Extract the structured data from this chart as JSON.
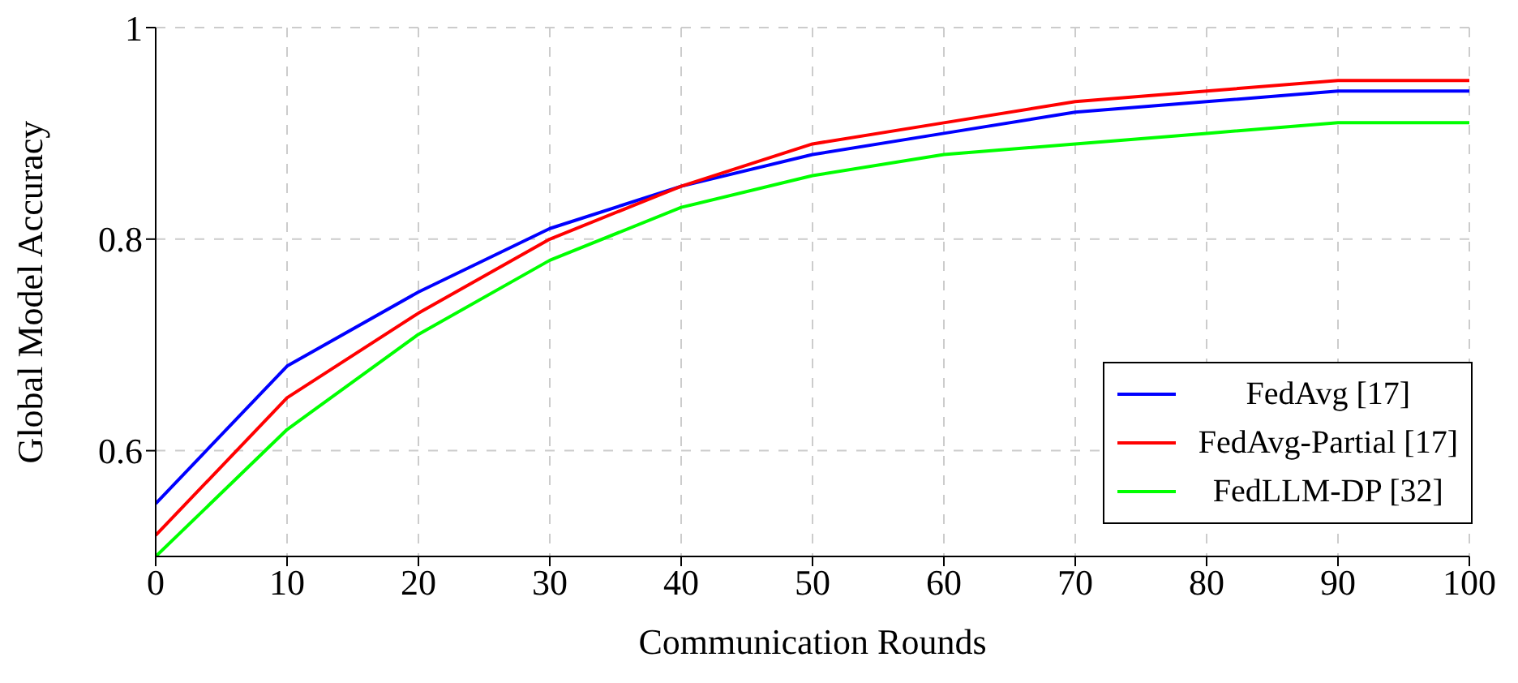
{
  "chart_data": {
    "type": "line",
    "xlabel": "Communication Rounds",
    "ylabel": "Global Model Accuracy",
    "x": [
      0,
      10,
      20,
      30,
      40,
      50,
      60,
      70,
      80,
      90,
      100
    ],
    "series": [
      {
        "name": "FedAvg [17]",
        "color": "#0000ff",
        "values": [
          0.55,
          0.68,
          0.75,
          0.81,
          0.85,
          0.88,
          0.9,
          0.92,
          0.93,
          0.94,
          0.94
        ]
      },
      {
        "name": "FedAvg-Partial [17]",
        "color": "#ff0000",
        "values": [
          0.52,
          0.65,
          0.73,
          0.8,
          0.85,
          0.89,
          0.91,
          0.93,
          0.94,
          0.95,
          0.95
        ]
      },
      {
        "name": "FedLLM-DP [32]",
        "color": "#00ff00",
        "values": [
          0.5,
          0.62,
          0.71,
          0.78,
          0.83,
          0.86,
          0.88,
          0.89,
          0.9,
          0.91,
          0.91
        ]
      }
    ],
    "xlim": [
      0,
      100
    ],
    "xticks": [
      0,
      10,
      20,
      30,
      40,
      50,
      60,
      70,
      80,
      90,
      100
    ],
    "ylim": [
      0.5,
      1
    ],
    "yticks": [
      0.6,
      0.8,
      1
    ],
    "grid": true,
    "legend": "bottom right",
    "marker": "none",
    "line_style": "solid"
  }
}
